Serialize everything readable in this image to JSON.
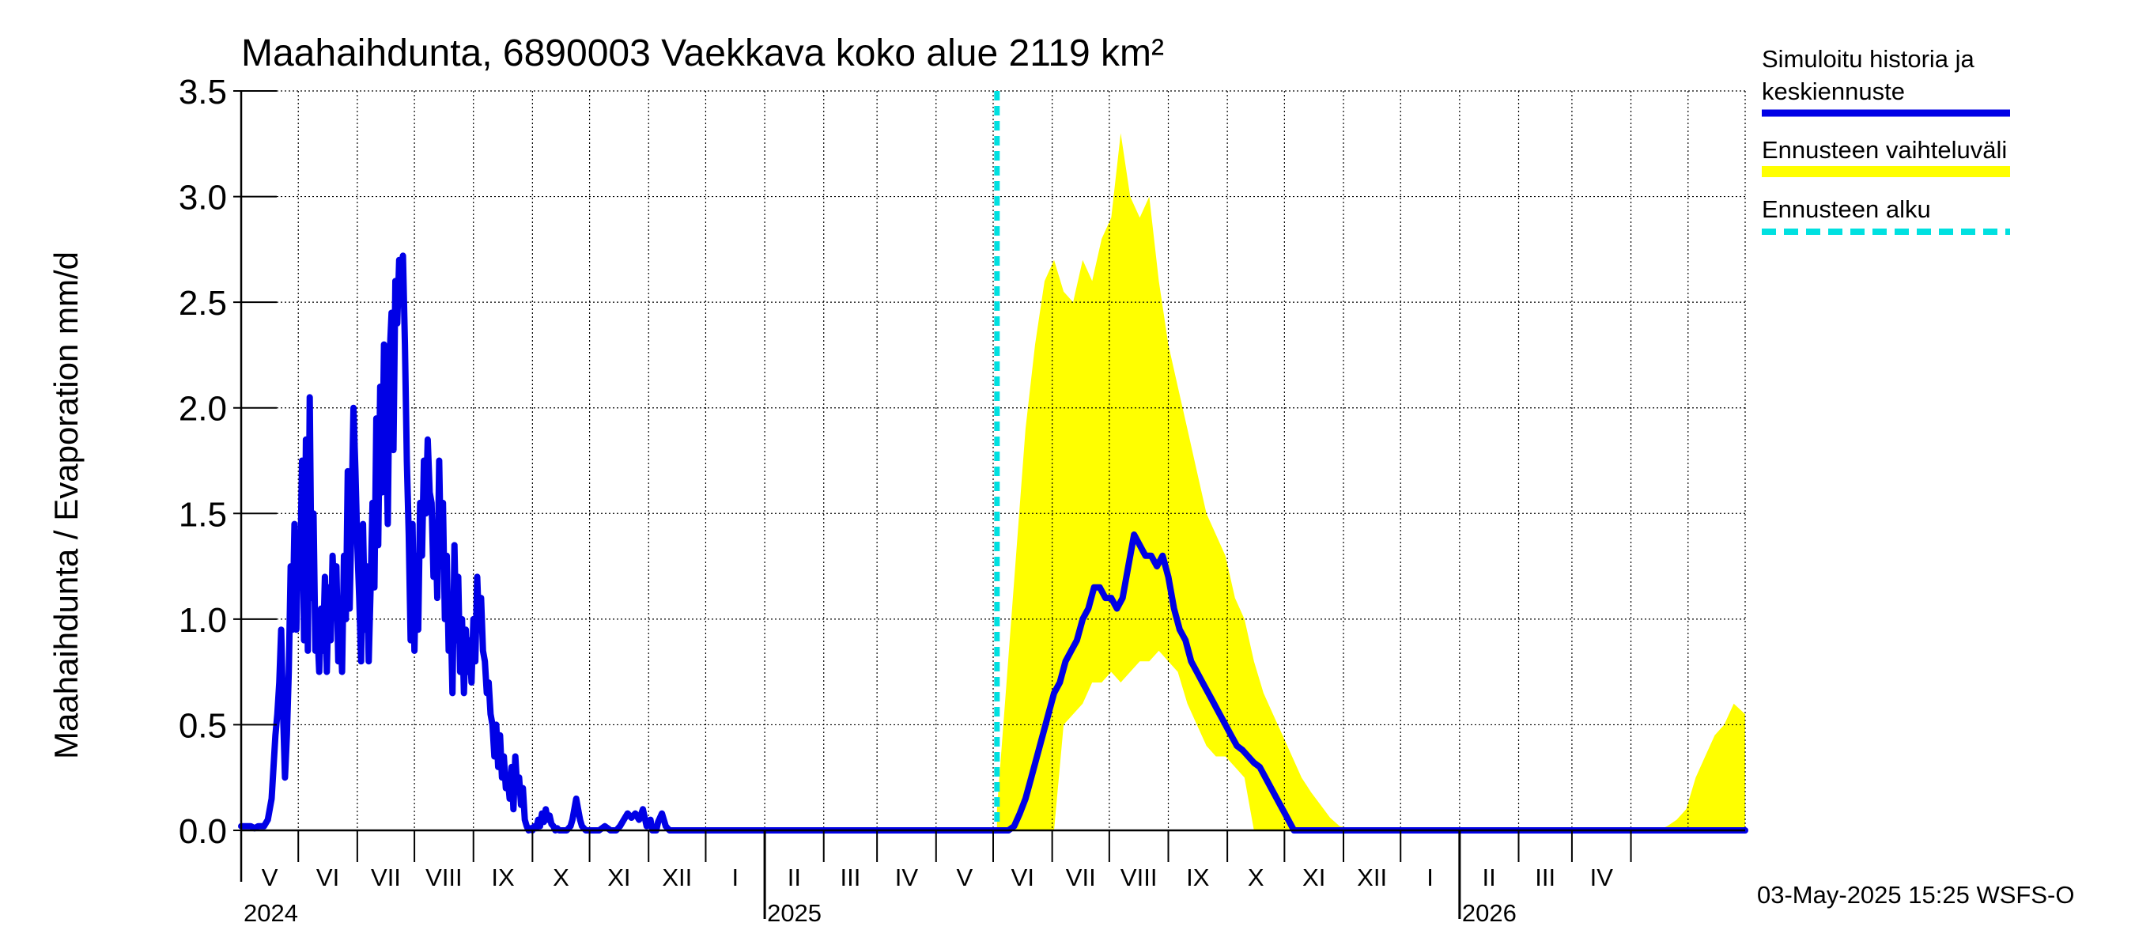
{
  "chart_data": {
    "type": "area",
    "title": "Maahaihdunta, 6890003 Vaekkava koko alue 2119 km²",
    "ylabel": "Maahaihdunta / Evaporation   mm/d",
    "ylim": [
      0,
      3.5
    ],
    "yticks": [
      "0.0",
      "0.5",
      "1.0",
      "1.5",
      "2.0",
      "2.5",
      "3.0",
      "3.5"
    ],
    "x_range": [
      "2024-04-01",
      "2026-05-31"
    ],
    "month_labels": [
      "V",
      "VI",
      "VII",
      "VIII",
      "IX",
      "X",
      "XI",
      "XII",
      "I",
      "II",
      "III",
      "IV",
      "V",
      "VI",
      "VII",
      "VIII",
      "IX",
      "X",
      "XI",
      "XII",
      "I",
      "II",
      "III",
      "IV"
    ],
    "year_labels": [
      "2024",
      "2025",
      "2026"
    ],
    "grid": true,
    "legend_position": "right",
    "legend": [
      {
        "label": "Simuloitu historia ja keskiennuste",
        "color": "#0000e6",
        "style": "solid"
      },
      {
        "label": "Ennusteen vaihteluväli",
        "color": "#ffff00",
        "style": "band"
      },
      {
        "label": "Ennusteen alku",
        "color": "#00e0e0",
        "style": "dashed"
      }
    ],
    "forecast_start": "2025-05-03",
    "series": [
      {
        "name": "Simuloitu historia ja keskiennuste",
        "x": [
          "2024-04-01",
          "2024-04-06",
          "2024-04-08",
          "2024-04-10",
          "2024-04-13",
          "2024-04-15",
          "2024-04-17",
          "2024-04-18",
          "2024-04-19",
          "2024-04-20",
          "2024-04-21",
          "2024-04-22",
          "2024-04-23",
          "2024-04-24",
          "2024-04-25",
          "2024-04-26",
          "2024-04-27",
          "2024-04-28",
          "2024-04-29",
          "2024-04-30",
          "2024-05-01",
          "2024-05-02",
          "2024-05-03",
          "2024-05-04",
          "2024-05-05",
          "2024-05-06",
          "2024-05-07",
          "2024-05-08",
          "2024-05-09",
          "2024-05-10",
          "2024-05-11",
          "2024-05-12",
          "2024-05-13",
          "2024-05-14",
          "2024-05-15",
          "2024-05-16",
          "2024-05-17",
          "2024-05-18",
          "2024-05-19",
          "2024-05-20",
          "2024-05-21",
          "2024-05-22",
          "2024-05-23",
          "2024-05-24",
          "2024-05-25",
          "2024-05-26",
          "2024-05-27",
          "2024-05-28",
          "2024-05-29",
          "2024-05-30",
          "2024-05-31",
          "2024-06-01",
          "2024-06-02",
          "2024-06-03",
          "2024-06-04",
          "2024-06-05",
          "2024-06-06",
          "2024-06-07",
          "2024-06-08",
          "2024-06-09",
          "2024-06-10",
          "2024-06-11",
          "2024-06-12",
          "2024-06-13",
          "2024-06-14",
          "2024-06-15",
          "2024-06-16",
          "2024-06-17",
          "2024-06-18",
          "2024-06-19",
          "2024-06-20",
          "2024-06-21",
          "2024-06-22",
          "2024-06-23",
          "2024-06-24",
          "2024-06-25",
          "2024-06-26",
          "2024-06-27",
          "2024-06-28",
          "2024-06-29",
          "2024-06-30",
          "2024-07-01",
          "2024-07-02",
          "2024-07-03",
          "2024-07-04",
          "2024-07-05",
          "2024-07-06",
          "2024-07-07",
          "2024-07-08",
          "2024-07-09",
          "2024-07-10",
          "2024-07-11",
          "2024-07-12",
          "2024-07-13",
          "2024-07-14",
          "2024-07-15",
          "2024-07-16",
          "2024-07-17",
          "2024-07-18",
          "2024-07-19",
          "2024-07-20",
          "2024-07-21",
          "2024-07-22",
          "2024-07-23",
          "2024-07-24",
          "2024-07-25",
          "2024-07-26",
          "2024-07-27",
          "2024-07-28",
          "2024-07-29",
          "2024-07-30",
          "2024-07-31",
          "2024-08-01",
          "2024-08-02",
          "2024-08-03",
          "2024-08-04",
          "2024-08-05",
          "2024-08-06",
          "2024-08-07",
          "2024-08-08",
          "2024-08-09",
          "2024-08-10",
          "2024-08-11",
          "2024-08-12",
          "2024-08-13",
          "2024-08-14",
          "2024-08-15",
          "2024-08-16",
          "2024-08-17",
          "2024-08-18",
          "2024-08-19",
          "2024-08-20",
          "2024-08-21",
          "2024-08-22",
          "2024-08-23",
          "2024-08-24",
          "2024-08-25",
          "2024-08-26",
          "2024-08-27",
          "2024-08-28",
          "2024-08-29",
          "2024-08-30",
          "2024-08-31",
          "2024-09-01",
          "2024-09-02",
          "2024-09-03",
          "2024-09-04",
          "2024-09-05",
          "2024-09-06",
          "2024-09-07",
          "2024-09-08",
          "2024-09-09",
          "2024-09-10",
          "2024-09-11",
          "2024-09-12",
          "2024-09-13",
          "2024-09-14",
          "2024-09-15",
          "2024-09-16",
          "2024-09-17",
          "2024-09-18",
          "2024-09-19",
          "2024-09-20",
          "2024-09-21",
          "2024-09-22",
          "2024-09-23",
          "2024-09-24",
          "2024-09-25",
          "2024-09-26",
          "2024-09-27",
          "2024-09-28",
          "2024-09-29",
          "2024-09-30",
          "2024-10-01",
          "2024-10-03",
          "2024-10-06",
          "2024-10-09",
          "2024-10-12",
          "2024-10-15",
          "2024-10-17",
          "2024-10-19",
          "2024-10-21",
          "2024-10-23",
          "2024-10-25",
          "2024-10-27",
          "2024-10-29",
          "2024-10-31",
          "2024-11-02",
          "2024-11-03",
          "2024-11-05",
          "2024-11-06",
          "2024-11-08",
          "2024-11-10",
          "2024-11-12",
          "2025-01-01",
          "2025-03-01",
          "2025-04-15",
          "2025-05-03",
          "2025-05-06",
          "2025-05-09",
          "2025-05-12",
          "2025-05-15",
          "2025-05-18",
          "2025-05-21",
          "2025-05-24",
          "2025-05-27",
          "2025-05-30",
          "2025-06-02",
          "2025-06-05",
          "2025-06-08",
          "2025-06-11",
          "2025-06-14",
          "2025-06-17",
          "2025-06-20",
          "2025-06-23",
          "2025-06-26",
          "2025-06-29",
          "2025-07-02",
          "2025-07-05",
          "2025-07-08",
          "2025-07-11",
          "2025-07-14",
          "2025-07-17",
          "2025-07-20",
          "2025-07-23",
          "2025-07-26",
          "2025-07-29",
          "2025-08-01",
          "2025-08-04",
          "2025-08-07",
          "2025-08-10",
          "2025-08-13",
          "2025-08-16",
          "2025-08-19",
          "2025-08-22",
          "2025-08-25",
          "2025-08-28",
          "2025-08-31",
          "2025-09-03",
          "2025-09-06",
          "2025-09-09",
          "2025-09-12",
          "2025-09-15",
          "2025-09-18",
          "2025-09-21",
          "2025-09-24",
          "2025-09-27",
          "2025-09-30",
          "2025-10-03",
          "2025-10-06",
          "2025-10-09",
          "2025-10-12",
          "2025-10-15",
          "2025-11-01",
          "2026-01-01",
          "2026-05-31"
        ],
        "y": [
          0.02,
          0.02,
          0.01,
          0.02,
          0.02,
          0.05,
          0.15,
          0.3,
          0.45,
          0.55,
          0.7,
          0.95,
          0.55,
          0.25,
          0.45,
          0.75,
          1.25,
          0.95,
          1.45,
          0.95,
          1.4,
          1.2,
          1.75,
          0.9,
          1.85,
          0.85,
          2.05,
          1.1,
          1.5,
          0.85,
          0.95,
          0.75,
          1.05,
          0.85,
          1.2,
          0.75,
          1.15,
          0.9,
          1.3,
          1.05,
          1.25,
          0.8,
          1.0,
          0.75,
          1.3,
          1.0,
          1.7,
          1.05,
          1.5,
          2.0,
          1.7,
          1.35,
          1.1,
          0.8,
          1.45,
          0.95,
          1.25,
          0.8,
          1.15,
          1.55,
          1.15,
          1.95,
          1.35,
          2.1,
          1.6,
          2.3,
          2.0,
          1.45,
          2.25,
          2.45,
          1.8,
          2.6,
          2.4,
          2.7,
          2.65,
          2.72,
          2.3,
          1.75,
          1.4,
          0.9,
          1.45,
          0.85,
          1.3,
          0.95,
          1.55,
          1.3,
          1.75,
          1.5,
          1.85,
          1.6,
          1.55,
          1.2,
          1.45,
          1.1,
          1.75,
          1.25,
          1.55,
          1.0,
          1.3,
          0.85,
          1.05,
          0.65,
          1.35,
          0.9,
          1.2,
          0.75,
          1.0,
          0.65,
          0.95,
          0.75,
          0.9,
          0.7,
          1.0,
          0.8,
          1.2,
          0.95,
          1.1,
          0.85,
          0.8,
          0.65,
          0.7,
          0.55,
          0.5,
          0.35,
          0.5,
          0.3,
          0.45,
          0.25,
          0.35,
          0.2,
          0.25,
          0.15,
          0.3,
          0.1,
          0.35,
          0.2,
          0.25,
          0.12,
          0.2,
          0.05,
          0.02,
          0.0,
          0.01,
          0.0,
          0.02,
          0.01,
          0.05,
          0.02,
          0.08,
          0.04,
          0.1,
          0.05,
          0.07,
          0.03,
          0.02,
          0.0,
          0.01,
          0.0,
          0.0,
          0.0,
          0.0,
          0.0,
          0.01,
          0.02,
          0.05,
          0.1,
          0.15,
          0.1,
          0.05,
          0.02,
          0.01,
          0.0,
          0.0,
          0.0,
          0.0,
          0.0,
          0.02,
          0.0,
          0.0,
          0.02,
          0.05,
          0.08,
          0.06,
          0.08,
          0.05,
          0.1,
          0.02,
          0.05,
          0.0,
          0.0,
          0.04,
          0.08,
          0.02,
          0.0,
          0.0,
          0.0,
          0.0,
          0.0,
          0.0,
          0.0,
          0.02,
          0.08,
          0.15,
          0.25,
          0.35,
          0.45,
          0.55,
          0.65,
          0.7,
          0.8,
          0.85,
          0.9,
          1.0,
          1.05,
          1.15,
          1.15,
          1.1,
          1.1,
          1.05,
          1.1,
          1.25,
          1.4,
          1.35,
          1.3,
          1.3,
          1.25,
          1.3,
          1.2,
          1.05,
          0.95,
          0.9,
          0.8,
          0.75,
          0.7,
          0.65,
          0.6,
          0.55,
          0.5,
          0.45,
          0.4,
          0.38,
          0.35,
          0.32,
          0.3,
          0.25,
          0.2,
          0.15,
          0.1,
          0.05,
          0.0,
          0.0,
          0.0,
          0.0,
          0.0,
          0.0,
          0.0
        ]
      },
      {
        "name": "Ennusteen vaihteluväli",
        "x": [
          "2025-05-03",
          "2025-05-08",
          "2025-05-13",
          "2025-05-18",
          "2025-05-23",
          "2025-05-28",
          "2025-06-02",
          "2025-06-07",
          "2025-06-12",
          "2025-06-17",
          "2025-06-22",
          "2025-06-27",
          "2025-07-02",
          "2025-07-07",
          "2025-07-12",
          "2025-07-17",
          "2025-07-22",
          "2025-07-27",
          "2025-08-01",
          "2025-08-06",
          "2025-08-11",
          "2025-08-16",
          "2025-08-21",
          "2025-08-26",
          "2025-08-31",
          "2025-09-05",
          "2025-09-10",
          "2025-09-15",
          "2025-09-20",
          "2025-09-25",
          "2025-09-30",
          "2025-10-05",
          "2025-10-10",
          "2025-10-15",
          "2025-10-20",
          "2025-10-25",
          "2025-10-30",
          "2025-11-05",
          "2025-11-10",
          "2025-11-20",
          "2025-12-01",
          "2026-04-15",
          "2026-04-20",
          "2026-04-25",
          "2026-04-30",
          "2026-05-05",
          "2026-05-10",
          "2026-05-15",
          "2026-05-20",
          "2026-05-25",
          "2026-05-31"
        ],
        "low": [
          0,
          0,
          0,
          0,
          0,
          0,
          0,
          0.5,
          0.55,
          0.6,
          0.7,
          0.7,
          0.75,
          0.7,
          0.75,
          0.8,
          0.8,
          0.85,
          0.8,
          0.75,
          0.6,
          0.5,
          0.4,
          0.35,
          0.35,
          0.3,
          0.25,
          0.0,
          0.0,
          0.0,
          0.0,
          0.0,
          0,
          0,
          0,
          0,
          0,
          0,
          0,
          0,
          0,
          0,
          0,
          0,
          0,
          0,
          0,
          0,
          0,
          0,
          0
        ],
        "high": [
          0.1,
          0.7,
          1.3,
          1.9,
          2.3,
          2.6,
          2.7,
          2.55,
          2.5,
          2.7,
          2.6,
          2.8,
          2.9,
          3.3,
          3.0,
          2.9,
          3.0,
          2.6,
          2.3,
          2.1,
          1.9,
          1.7,
          1.5,
          1.4,
          1.3,
          1.1,
          1.0,
          0.8,
          0.65,
          0.55,
          0.45,
          0.35,
          0.25,
          0.18,
          0.12,
          0.06,
          0.02,
          0.01,
          0,
          0,
          0,
          0,
          0.02,
          0.05,
          0.1,
          0.25,
          0.35,
          0.45,
          0.5,
          0.6,
          0.55
        ]
      }
    ],
    "annotations": [
      "03-May-2025 15:25 WSFS-O"
    ]
  }
}
